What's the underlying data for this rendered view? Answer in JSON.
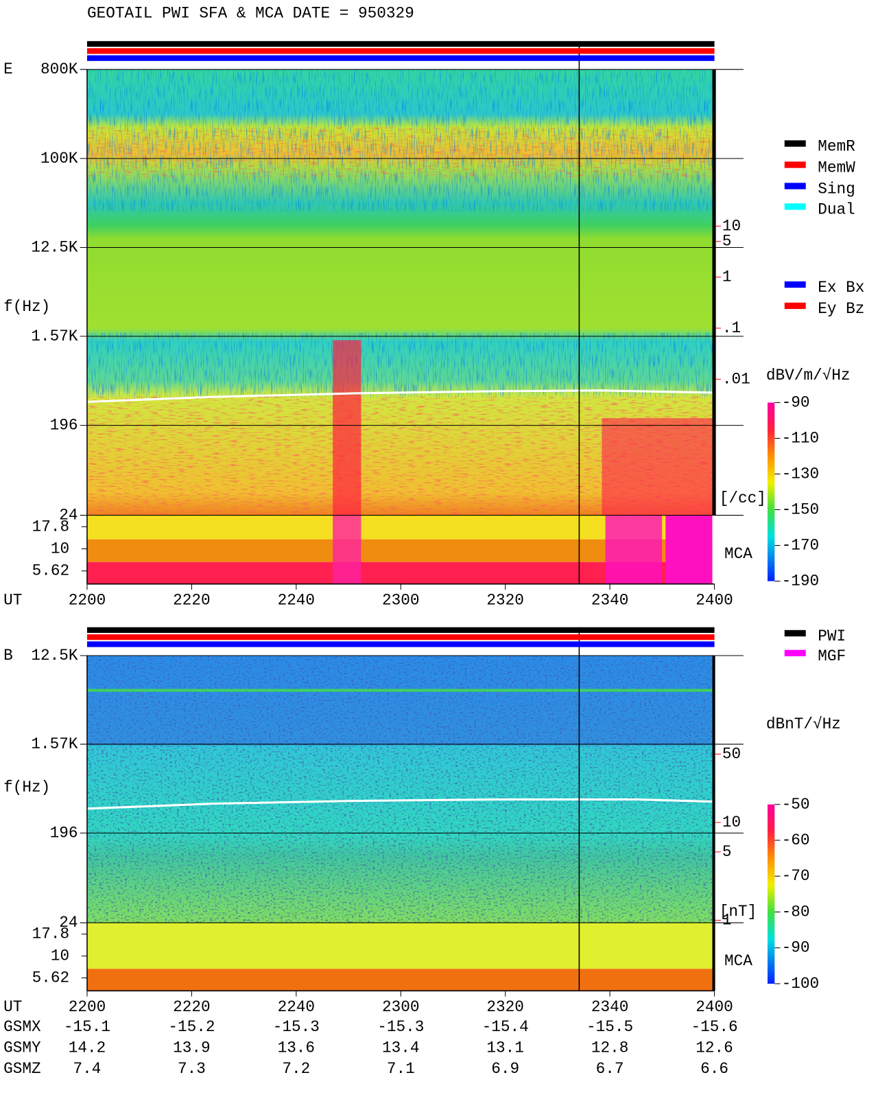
{
  "title": "GEOTAIL  PWI SFA & MCA   DATE = 950329",
  "chart_data": [
    {
      "type": "spectrogram",
      "panel": "E",
      "y_label": "f(Hz)",
      "x_label": "UT",
      "categories": [
        "2200",
        "2220",
        "2240",
        "2300",
        "2320",
        "2340",
        "2400"
      ],
      "log_y": true,
      "ylim": [
        24,
        800000
      ],
      "yticks": [
        {
          "value": 800000,
          "label": "800K"
        },
        {
          "value": 100000,
          "label": "100K"
        },
        {
          "value": 12500,
          "label": "12.5K"
        },
        {
          "value": 1570,
          "label": "1.57K"
        },
        196,
        24
      ],
      "mca_label": "MCA",
      "mca_ylim": [
        4,
        24
      ],
      "mca_yticks": [
        17.8,
        10,
        5.62
      ],
      "colorbar": {
        "label": "dBV/m/√Hz",
        "clim": [
          -190,
          -90
        ],
        "ticks": [
          -90,
          -110,
          -130,
          -150,
          -170,
          -190
        ]
      },
      "side_scale": {
        "unit": "[/cc]",
        "color": "#ff0000",
        "ticks": [
          10,
          5,
          1,
          {
            "value": 0.1,
            "label": ".1"
          },
          {
            "value": 0.01,
            "label": ".01"
          }
        ]
      },
      "legends": [
        [
          {
            "name": "MemR",
            "color": "#000000",
            "text_color": "#000000"
          },
          {
            "name": "MemW",
            "color": "#ff0000",
            "text_color": "#ff0000"
          },
          {
            "name": "Sing",
            "color": "#0000ff",
            "text_color": "#0000ff"
          },
          {
            "name": "Dual",
            "color": "#00ffff",
            "text_color": "#00ffff"
          }
        ],
        [
          {
            "name": "Ex Bx",
            "color": "#0000ff",
            "text_color": "#0000ff"
          },
          {
            "name": "Ey Bz",
            "color": "#ff0000",
            "text_color": "#ff0000"
          }
        ]
      ]
    },
    {
      "type": "spectrogram",
      "panel": "B",
      "y_label": "f(Hz)",
      "x_label": "UT",
      "categories": [
        "2200",
        "2220",
        "2240",
        "2300",
        "2320",
        "2340",
        "2400"
      ],
      "log_y": true,
      "ylim": [
        24,
        12500
      ],
      "yticks": [
        {
          "value": 12500,
          "label": "12.5K"
        },
        {
          "value": 1570,
          "label": "1.57K"
        },
        196,
        24
      ],
      "mca_label": "MCA",
      "mca_ylim": [
        4,
        24
      ],
      "mca_yticks": [
        17.8,
        10,
        5.62
      ],
      "colorbar": {
        "label": "dBnT/√Hz",
        "clim": [
          -100,
          -50
        ],
        "ticks": [
          -50,
          -60,
          -70,
          -80,
          -90,
          -100
        ]
      },
      "side_scale": {
        "unit": "[nT]",
        "color": "#ff0000",
        "ticks": [
          50,
          10,
          5,
          1
        ]
      },
      "legends": [
        [
          {
            "name": "PWI",
            "color": "#000000",
            "text_color": "#000000"
          },
          {
            "name": "MGF",
            "color": "#ff00ff",
            "text_color": "#ff00ff"
          }
        ]
      ]
    }
  ],
  "orbit_table": {
    "rows": [
      {
        "name": "GSMX",
        "values": [
          -15.1,
          -15.2,
          -15.3,
          -15.3,
          -15.4,
          -15.5,
          -15.6
        ]
      },
      {
        "name": "GSMY",
        "values": [
          14.2,
          13.9,
          13.6,
          13.4,
          13.1,
          12.8,
          12.6
        ]
      },
      {
        "name": "GSMZ",
        "values": [
          7.4,
          7.3,
          7.2,
          7.1,
          6.9,
          6.7,
          6.6
        ]
      }
    ]
  }
}
